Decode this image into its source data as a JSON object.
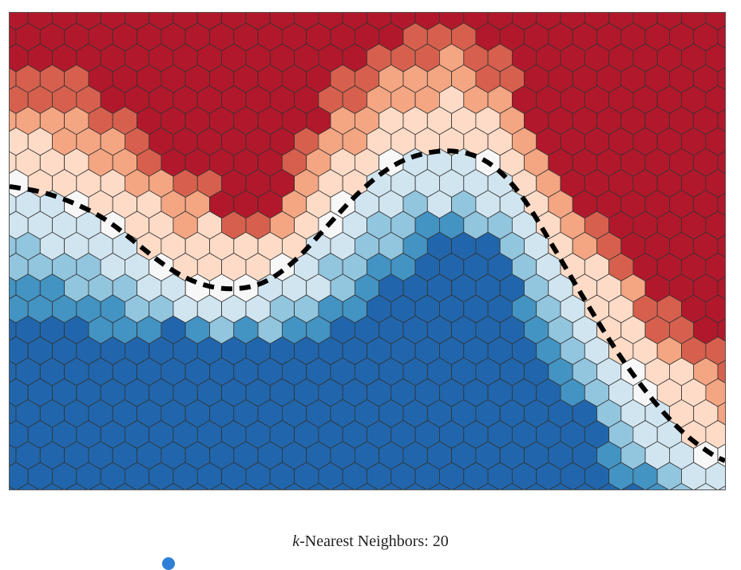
{
  "caption": {
    "k_symbol": "k",
    "label_rest": "-Nearest Neighbors: ",
    "value": "20"
  },
  "colors": {
    "red_dark": "#b2182b",
    "red_mid": "#d6604d",
    "red_light": "#f4a582",
    "red_pale": "#fddbc7",
    "neutral": "#f7f7f7",
    "blue_pale": "#d1e5f0",
    "blue_light": "#92c5de",
    "blue_mid": "#4393c3",
    "blue_dark": "#2166ac",
    "hex_edge": "#333333",
    "boundary": "#000000",
    "slider": "#2f7fd6"
  },
  "chart_data": {
    "type": "heatmap",
    "title": "",
    "xlabel": "",
    "ylabel": "",
    "grid": true,
    "legend": "none",
    "cell_shape": "hexagon",
    "color_scale": "RdBu diverging (red = class A, blue = class B)",
    "decision_boundary": "dashed black curve"
  }
}
